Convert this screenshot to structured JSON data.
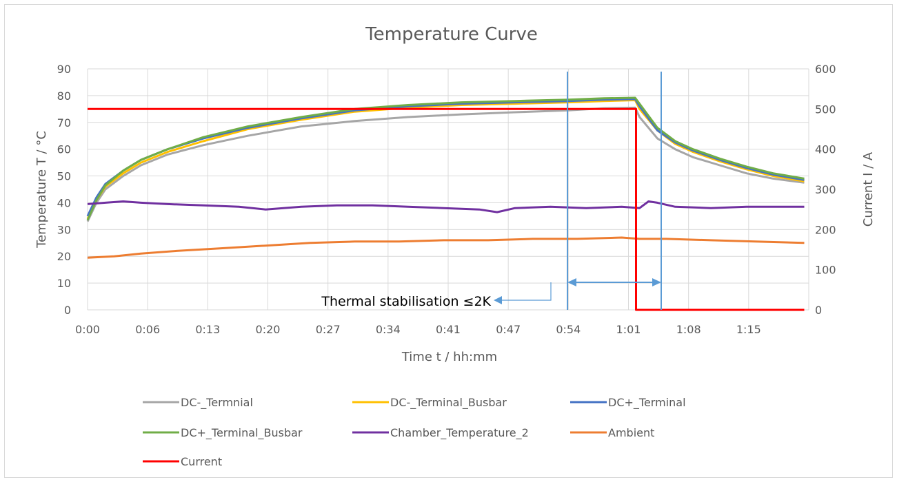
{
  "chart_data": {
    "type": "line",
    "title": "Temperature Curve",
    "xlabel": "Time t / hh:mm",
    "ylabel": "Temperature T / °C",
    "y2label": "Current I / A",
    "xlim": [
      0,
      81
    ],
    "ylim": [
      0,
      90
    ],
    "y2lim": [
      0,
      600
    ],
    "x_ticks": [
      {
        "v": 0,
        "label": "0:00"
      },
      {
        "v": 6.75,
        "label": "0:06"
      },
      {
        "v": 13.5,
        "label": "0:13"
      },
      {
        "v": 20.25,
        "label": "0:20"
      },
      {
        "v": 27,
        "label": "0:27"
      },
      {
        "v": 33.75,
        "label": "0:34"
      },
      {
        "v": 40.5,
        "label": "0:41"
      },
      {
        "v": 47.25,
        "label": "0:47"
      },
      {
        "v": 54,
        "label": "0:54"
      },
      {
        "v": 60.75,
        "label": "1:01"
      },
      {
        "v": 67.5,
        "label": "1:08"
      },
      {
        "v": 74.25,
        "label": "1:15"
      }
    ],
    "y_ticks": [
      0,
      10,
      20,
      30,
      40,
      50,
      60,
      70,
      80,
      90
    ],
    "y2_ticks": [
      0,
      100,
      200,
      300,
      400,
      500,
      600
    ],
    "grid": true,
    "legend_position": "bottom",
    "series": [
      {
        "name": "DC-_Termnial",
        "color": "#a6a6a6",
        "axis": "left",
        "x": [
          0,
          1,
          2,
          4,
          6,
          9,
          13,
          18,
          24,
          30,
          36,
          42,
          48,
          54,
          58,
          61.5,
          62,
          64,
          66,
          68,
          71,
          74,
          77,
          80.5
        ],
        "y": [
          33,
          40,
          45,
          50,
          54,
          58,
          61.5,
          65,
          68.5,
          70.5,
          72,
          73,
          73.8,
          74.5,
          75.3,
          75.5,
          72,
          64,
          60,
          57,
          54,
          51,
          49,
          47.5
        ]
      },
      {
        "name": "DC-_Terminal_Busbar",
        "color": "#ffc000",
        "axis": "left",
        "x": [
          0,
          1,
          2,
          4,
          6,
          9,
          13,
          18,
          24,
          30,
          36,
          42,
          48,
          54,
          58,
          61.5,
          62,
          64,
          66,
          68,
          71,
          74,
          77,
          80.5
        ],
        "y": [
          34,
          41,
          46,
          51,
          55,
          59,
          63,
          67.5,
          71,
          74,
          75.5,
          76.5,
          77,
          77.5,
          78,
          78.3,
          75,
          67,
          62,
          59,
          55.5,
          52.5,
          50,
          48
        ]
      },
      {
        "name": "DC+_Terminal",
        "color": "#4472c4",
        "axis": "left",
        "x": [
          0,
          1,
          2,
          4,
          6,
          9,
          13,
          18,
          24,
          30,
          36,
          42,
          48,
          54,
          58,
          61.5,
          62,
          64,
          66,
          68,
          71,
          74,
          77,
          80.5
        ],
        "y": [
          35,
          42,
          47,
          52,
          56,
          60,
          64,
          68,
          71.5,
          74.5,
          76,
          77,
          77.5,
          78,
          78.5,
          78.7,
          76,
          67,
          62.5,
          59.5,
          56,
          53,
          50.5,
          48.5
        ]
      },
      {
        "name": "DC+_Terminal_Busbar",
        "color": "#70ad47",
        "axis": "left",
        "x": [
          0,
          1,
          2,
          4,
          6,
          9,
          13,
          18,
          24,
          30,
          36,
          42,
          48,
          54,
          58,
          61.5,
          62,
          64,
          66,
          68,
          71,
          74,
          77,
          80.5
        ],
        "y": [
          33.5,
          41,
          46.5,
          52,
          56,
          60,
          64.5,
          68.5,
          72,
          75,
          76.5,
          77.5,
          78,
          78.5,
          79,
          79.2,
          77,
          68,
          63,
          60,
          56.5,
          53.5,
          51,
          49
        ]
      },
      {
        "name": "Chamber_Temperature_2",
        "color": "#7030a0",
        "axis": "left",
        "x": [
          0,
          2,
          4,
          6,
          9,
          13,
          17,
          20,
          24,
          28,
          32,
          36,
          40,
          44,
          46,
          48,
          52,
          56,
          60,
          62,
          63,
          64,
          66,
          70,
          74,
          78,
          80.5
        ],
        "y": [
          39.5,
          40,
          40.5,
          40,
          39.5,
          39,
          38.5,
          37.5,
          38.5,
          39,
          39,
          38.5,
          38,
          37.5,
          36.5,
          38,
          38.5,
          38,
          38.5,
          38,
          40.5,
          40,
          38.5,
          38,
          38.5,
          38.5,
          38.5
        ]
      },
      {
        "name": "Ambient",
        "color": "#ed7d31",
        "axis": "left",
        "x": [
          0,
          3,
          6,
          10,
          15,
          20,
          25,
          30,
          35,
          40,
          45,
          50,
          55,
          60,
          62,
          65,
          70,
          75,
          80.5
        ],
        "y": [
          19.5,
          20,
          21,
          22,
          23,
          24,
          25,
          25.5,
          25.5,
          26,
          26,
          26.5,
          26.5,
          27,
          26.5,
          26.5,
          26,
          25.5,
          25
        ]
      },
      {
        "name": "Current",
        "color": "#ff0000",
        "axis": "right",
        "x": [
          0,
          61.6,
          61.6,
          80.5
        ],
        "y": [
          500,
          500,
          0,
          0
        ]
      }
    ],
    "annotation": "Thermal stabilisation ≤2K"
  }
}
